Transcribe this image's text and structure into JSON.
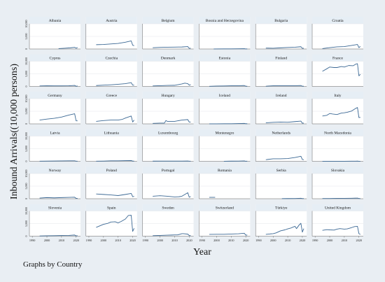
{
  "figure": {
    "ylabel": "Inbound Arrivals((10,000 persons)",
    "xlabel": "Year",
    "note": "Graphs by Country",
    "line_color": "#3b6894",
    "background_color": "#e9eef3"
  },
  "chart_data": {
    "type": "line",
    "layout": "small-multiples 6x6 (by Country)",
    "xlim": [
      1988,
      2023
    ],
    "ylim": [
      0,
      10000
    ],
    "x_ticks": [
      1990,
      2000,
      2010,
      2020
    ],
    "x_tick_labels": [
      "1990",
      "2000",
      "2010",
      "2020"
    ],
    "y_ticks": [
      0,
      5000,
      10000
    ],
    "y_tick_labels": [
      "0",
      "5,000",
      "10,000"
    ],
    "grid": true,
    "ylabel": "Inbound Arrivals((10,000 persons)",
    "xlabel": "Year",
    "series": [
      {
        "name": "Albania",
        "x": [
          2008,
          2012,
          2016,
          2019,
          2020,
          2021
        ],
        "y": [
          150,
          300,
          450,
          650,
          300,
          600
        ]
      },
      {
        "name": "Austria",
        "x": [
          1995,
          2000,
          2005,
          2010,
          2015,
          2019,
          2020,
          2021
        ],
        "y": [
          1700,
          1800,
          2000,
          2200,
          2700,
          3200,
          1500,
          1300
        ]
      },
      {
        "name": "Belgium",
        "x": [
          1995,
          2000,
          2005,
          2010,
          2015,
          2019,
          2020,
          2021
        ],
        "y": [
          500,
          650,
          700,
          750,
          800,
          950,
          250,
          300
        ]
      },
      {
        "name": "Bosnia and Herzegovina",
        "x": [
          1998,
          2005,
          2010,
          2015,
          2019,
          2020,
          2021
        ],
        "y": [
          20,
          40,
          40,
          80,
          120,
          20,
          40
        ]
      },
      {
        "name": "Bulgaria",
        "x": [
          1995,
          2000,
          2005,
          2010,
          2015,
          2019,
          2020,
          2021
        ],
        "y": [
          350,
          300,
          450,
          600,
          700,
          900,
          250,
          300
        ]
      },
      {
        "name": "Croatia",
        "x": [
          1995,
          2000,
          2005,
          2010,
          2015,
          2019,
          2020,
          2021
        ],
        "y": [
          150,
          550,
          850,
          950,
          1400,
          1800,
          550,
          1000
        ]
      },
      {
        "name": "Cyprus",
        "x": [
          1995,
          2000,
          2005,
          2010,
          2015,
          2019,
          2020,
          2021
        ],
        "y": [
          200,
          270,
          240,
          220,
          270,
          400,
          60,
          190
        ]
      },
      {
        "name": "Czechia",
        "x": [
          1995,
          2000,
          2005,
          2010,
          2015,
          2019,
          2020,
          2021
        ],
        "y": [
          350,
          500,
          650,
          850,
          1100,
          1500,
          500,
          500
        ]
      },
      {
        "name": "Denmark",
        "x": [
          1995,
          2000,
          2005,
          2010,
          2015,
          2017,
          2019,
          2020,
          2021
        ],
        "y": [
          200,
          300,
          400,
          450,
          1000,
          1300,
          1100,
          500,
          700
        ]
      },
      {
        "name": "Estonia",
        "x": [
          1995,
          2000,
          2005,
          2010,
          2015,
          2019,
          2020,
          2021
        ],
        "y": [
          50,
          150,
          200,
          250,
          300,
          350,
          100,
          100
        ]
      },
      {
        "name": "Finland",
        "x": [
          1995,
          2000,
          2005,
          2010,
          2015,
          2019,
          2020,
          2021
        ],
        "y": [
          100,
          250,
          300,
          300,
          300,
          350,
          100,
          100
        ]
      },
      {
        "name": "France",
        "x": [
          1995,
          1998,
          2000,
          2003,
          2005,
          2008,
          2010,
          2013,
          2016,
          2018,
          2019,
          2020,
          2021
        ],
        "y": [
          6000,
          7000,
          7700,
          7500,
          7500,
          7900,
          7700,
          8300,
          8200,
          8900,
          9000,
          4200,
          4800
        ]
      },
      {
        "name": "Germany",
        "x": [
          1995,
          2000,
          2005,
          2010,
          2015,
          2019,
          2020,
          2021
        ],
        "y": [
          1500,
          1900,
          2200,
          2700,
          3500,
          4000,
          1200,
          1200
        ]
      },
      {
        "name": "Greece",
        "x": [
          1995,
          2000,
          2005,
          2010,
          2013,
          2015,
          2019,
          2020,
          2021
        ],
        "y": [
          1000,
          1300,
          1500,
          1500,
          1800,
          2300,
          3100,
          750,
          1500
        ]
      },
      {
        "name": "Hungary",
        "x": [
          1995,
          2000,
          2003,
          2004,
          2005,
          2010,
          2015,
          2019,
          2020,
          2021
        ],
        "y": [
          200,
          300,
          300,
          1300,
          1000,
          1000,
          1500,
          1700,
          700,
          750
        ]
      },
      {
        "name": "Iceland",
        "x": [
          1995,
          2000,
          2005,
          2010,
          2015,
          2019,
          2020,
          2021
        ],
        "y": [
          20,
          30,
          40,
          50,
          130,
          200,
          50,
          70
        ]
      },
      {
        "name": "Ireland",
        "x": [
          1995,
          2000,
          2005,
          2010,
          2015,
          2019,
          2020,
          2021
        ],
        "y": [
          400,
          600,
          700,
          650,
          900,
          1100,
          250,
          300
        ]
      },
      {
        "name": "Italy",
        "x": [
          1995,
          1998,
          2000,
          2002,
          2005,
          2008,
          2010,
          2012,
          2015,
          2018,
          2019,
          2020,
          2021
        ],
        "y": [
          3100,
          3400,
          4100,
          3900,
          3700,
          4300,
          4400,
          4600,
          5100,
          6200,
          6500,
          2500,
          2600
        ]
      },
      {
        "name": "Latvia",
        "x": [
          1995,
          2000,
          2005,
          2010,
          2015,
          2019,
          2020,
          2021
        ],
        "y": [
          50,
          80,
          120,
          150,
          200,
          200,
          60,
          60
        ]
      },
      {
        "name": "Lithuania",
        "x": [
          1995,
          2000,
          2005,
          2010,
          2015,
          2019,
          2020,
          2021
        ],
        "y": [
          50,
          100,
          200,
          200,
          250,
          300,
          80,
          90
        ]
      },
      {
        "name": "Luxembourg",
        "x": [
          1995,
          2000,
          2005,
          2010,
          2015,
          2019,
          2020,
          2021
        ],
        "y": [
          70,
          80,
          90,
          80,
          100,
          110,
          50,
          60
        ]
      },
      {
        "name": "Montenegro",
        "x": [
          2005,
          2010,
          2015,
          2019,
          2020,
          2021
        ],
        "y": [
          30,
          70,
          100,
          150,
          30,
          100
        ]
      },
      {
        "name": "Netherlands",
        "x": [
          1995,
          2000,
          2005,
          2010,
          2015,
          2019,
          2020,
          2021
        ],
        "y": [
          650,
          1000,
          1000,
          1100,
          1500,
          2000,
          700,
          650
        ]
      },
      {
        "name": "North Macedonia",
        "x": [
          1995,
          2000,
          2005,
          2010,
          2015,
          2019,
          2020,
          2021
        ],
        "y": [
          20,
          25,
          20,
          30,
          50,
          70,
          20,
          30
        ]
      },
      {
        "name": "Norway",
        "x": [
          1995,
          2000,
          2005,
          2010,
          2015,
          2019,
          2020,
          2021
        ],
        "y": [
          250,
          450,
          350,
          450,
          550,
          600,
          150,
          150
        ]
      },
      {
        "name": "Poland",
        "x": [
          1995,
          2000,
          2005,
          2010,
          2015,
          2019,
          2020,
          2021
        ],
        "y": [
          1900,
          1700,
          1500,
          1250,
          1700,
          2100,
          800,
          970
        ]
      },
      {
        "name": "Portugal",
        "x": [
          1995,
          2000,
          2005,
          2010,
          2013,
          2015,
          2019,
          2020,
          2021
        ],
        "y": [
          1000,
          1200,
          1000,
          700,
          800,
          1000,
          2400,
          600,
          900
        ]
      },
      {
        "name": "Romania",
        "x": [
          1995,
          1997,
          1999
        ],
        "y": [
          550,
          550,
          550
        ]
      },
      {
        "name": "Serbia",
        "x": [
          2006,
          2010,
          2015,
          2019,
          2020,
          2021
        ],
        "y": [
          50,
          70,
          100,
          180,
          40,
          90
        ]
      },
      {
        "name": "Slovakia",
        "x": [
          1995,
          2000,
          2005,
          2010,
          2015,
          2019,
          2020,
          2021
        ],
        "y": [
          100,
          100,
          150,
          150,
          200,
          250,
          100,
          100
        ]
      },
      {
        "name": "Slovenia",
        "x": [
          1995,
          2000,
          2005,
          2010,
          2015,
          2019,
          2020,
          2021
        ],
        "y": [
          100,
          150,
          200,
          250,
          300,
          450,
          120,
          200
        ]
      },
      {
        "name": "Spain",
        "x": [
          1995,
          2000,
          2003,
          2005,
          2008,
          2010,
          2012,
          2015,
          2017,
          2019,
          2020,
          2021
        ],
        "y": [
          3500,
          4700,
          5100,
          5600,
          5700,
          5300,
          5800,
          6800,
          8200,
          8300,
          1900,
          3100
        ]
      },
      {
        "name": "Sweden",
        "x": [
          1995,
          2000,
          2005,
          2008,
          2010,
          2012,
          2015,
          2016,
          2019,
          2020,
          2021
        ],
        "y": [
          200,
          300,
          400,
          450,
          500,
          500,
          1000,
          1000,
          800,
          250,
          200
        ]
      },
      {
        "name": "Switzerland",
        "x": [
          1995,
          2000,
          2005,
          2010,
          2015,
          2019,
          2020,
          2021
        ],
        "y": [
          700,
          750,
          750,
          850,
          950,
          1150,
          400,
          450
        ]
      },
      {
        "name": "Türkiye",
        "x": [
          1995,
          1998,
          2000,
          2002,
          2005,
          2008,
          2010,
          2012,
          2014,
          2015,
          2016,
          2018,
          2019,
          2020,
          2021
        ],
        "y": [
          700,
          900,
          1000,
          1300,
          2100,
          2500,
          2900,
          3200,
          3700,
          3900,
          3000,
          4600,
          5100,
          1600,
          3000
        ]
      },
      {
        "name": "United Kingdom",
        "x": [
          1995,
          1998,
          2000,
          2003,
          2005,
          2007,
          2010,
          2012,
          2015,
          2017,
          2019,
          2020,
          2021
        ],
        "y": [
          2300,
          2600,
          2500,
          2400,
          2800,
          3000,
          2800,
          2900,
          3400,
          3800,
          3900,
          1000,
          700
        ]
      }
    ]
  }
}
